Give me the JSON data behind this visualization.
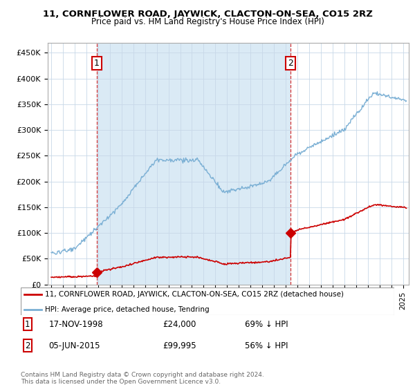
{
  "title": "11, CORNFLOWER ROAD, JAYWICK, CLACTON-ON-SEA, CO15 2RZ",
  "subtitle": "Price paid vs. HM Land Registry's House Price Index (HPI)",
  "ylabel_ticks": [
    "£0",
    "£50K",
    "£100K",
    "£150K",
    "£200K",
    "£250K",
    "£300K",
    "£350K",
    "£400K",
    "£450K"
  ],
  "ytick_values": [
    0,
    50000,
    100000,
    150000,
    200000,
    250000,
    300000,
    350000,
    400000,
    450000
  ],
  "ylim": [
    0,
    470000
  ],
  "sale1_x": 1998.88,
  "sale1_y": 24000,
  "sale2_x": 2015.43,
  "sale2_y": 99995,
  "hpi_color": "#7aafd4",
  "hpi_fill_color": "#daeaf5",
  "price_color": "#cc0000",
  "legend_label1": "11, CORNFLOWER ROAD, JAYWICK, CLACTON-ON-SEA, CO15 2RZ (detached house)",
  "legend_label2": "HPI: Average price, detached house, Tendring",
  "note1_label": "1",
  "note1_date": "17-NOV-1998",
  "note1_price": "£24,000",
  "note1_hpi": "69% ↓ HPI",
  "note2_label": "2",
  "note2_date": "05-JUN-2015",
  "note2_price": "£99,995",
  "note2_hpi": "56% ↓ HPI",
  "copyright": "Contains HM Land Registry data © Crown copyright and database right 2024.\nThis data is licensed under the Open Government Licence v3.0.",
  "xmin": 1994.7,
  "xmax": 2025.5
}
